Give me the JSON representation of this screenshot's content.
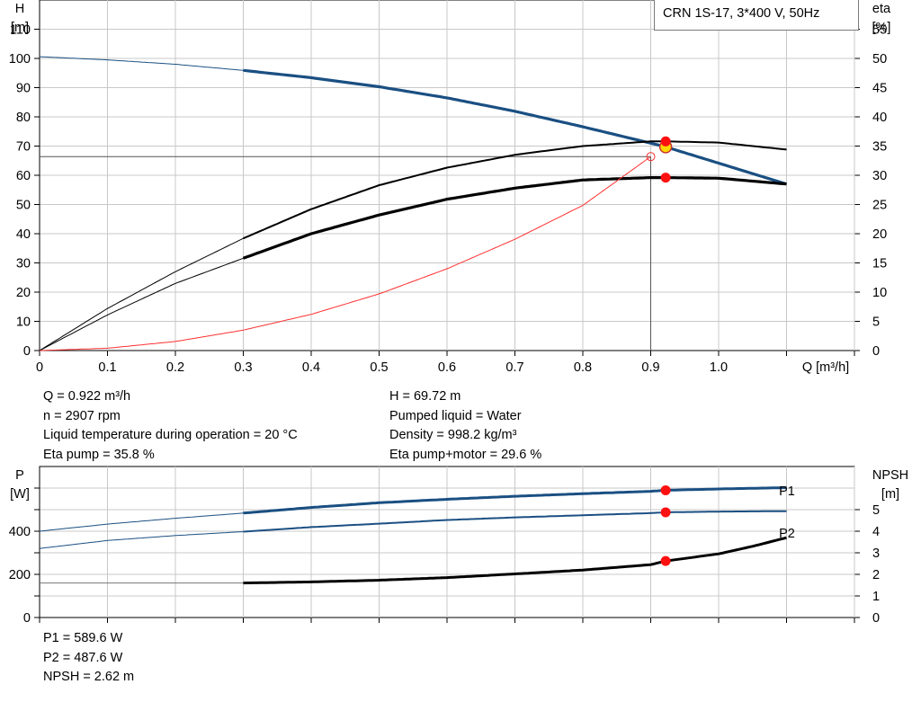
{
  "header": {
    "pump_title": "CRN 1S-17, 3*400 V, 50Hz"
  },
  "top_chart": {
    "left_axis": {
      "label": "H",
      "unit": "[m]"
    },
    "right_axis": {
      "label": "eta",
      "unit": "[%]"
    },
    "x_axis": {
      "label": "Q [m³/h]"
    }
  },
  "bottom_chart": {
    "left_axis": {
      "label": "P",
      "unit": "[W]"
    },
    "right_axis": {
      "label": "NPSH",
      "unit": "[m]"
    },
    "curve_labels": {
      "p1": "P1",
      "p2": "P2"
    }
  },
  "info": {
    "left": [
      "Q = 0.922 m³/h",
      "n = 2907 rpm",
      "Liquid temperature during operation = 20 °C",
      "Eta pump = 35.8 %"
    ],
    "right": [
      "H = 69.72 m",
      "Pumped liquid = Water",
      "Density = 998.2 kg/m³",
      "Eta pump+motor = 29.6 %"
    ]
  },
  "power_info": [
    "P1 = 589.6 W",
    "P2 = 487.6 W",
    "NPSH = 2.62 m"
  ],
  "chart_data": [
    {
      "type": "line",
      "title": "",
      "xlabel": "Q [m³/h]",
      "ylabel": "H [m]",
      "y2label": "eta [%]",
      "xlim": [
        0,
        1.2
      ],
      "ylim": [
        0,
        120
      ],
      "y2lim": [
        0,
        60
      ],
      "xticks": [
        "0",
        "0.1",
        "0.2",
        "0.3",
        "0.4",
        "0.5",
        "0.6",
        "0.7",
        "0.8",
        "0.9",
        "1.0"
      ],
      "yticks": [
        0,
        10,
        20,
        30,
        40,
        50,
        60,
        70,
        80,
        90,
        100,
        110
      ],
      "y2ticks": [
        0,
        5,
        10,
        15,
        20,
        25,
        30,
        35,
        40,
        45,
        50,
        55
      ],
      "grid": true,
      "series": [
        {
          "key": "H",
          "axis": "left",
          "color": "#1a4f82",
          "operating_from": 0.3,
          "x": [
            0,
            0.1,
            0.2,
            0.3,
            0.4,
            0.5,
            0.6,
            0.7,
            0.8,
            0.9,
            0.922,
            1.1
          ],
          "y": [
            100.6,
            99.5,
            98.0,
            95.9,
            93.4,
            90.3,
            86.5,
            81.9,
            76.6,
            71.0,
            69.72,
            57.0
          ]
        },
        {
          "key": "eta_pump",
          "axis": "right",
          "color": "#000000",
          "operating_from": 0.3,
          "x": [
            0,
            0.1,
            0.2,
            0.3,
            0.4,
            0.5,
            0.6,
            0.7,
            0.8,
            0.9,
            0.922,
            1.0,
            1.1
          ],
          "y": [
            0,
            7.2,
            13.5,
            19.2,
            24.2,
            28.3,
            31.3,
            33.5,
            35.0,
            35.8,
            35.8,
            35.6,
            34.4
          ]
        },
        {
          "key": "eta_pump_motor",
          "axis": "right",
          "color": "#000000",
          "operating_from": 0.3,
          "x": [
            0,
            0.1,
            0.2,
            0.3,
            0.4,
            0.5,
            0.6,
            0.7,
            0.8,
            0.9,
            0.922,
            1.0,
            1.1
          ],
          "y": [
            0,
            6.1,
            11.5,
            15.8,
            20.0,
            23.2,
            25.9,
            27.8,
            29.2,
            29.6,
            29.6,
            29.5,
            28.5
          ]
        },
        {
          "key": "system_curve",
          "axis": "left",
          "color": "#ff3030",
          "x": [
            0,
            0.1,
            0.2,
            0.3,
            0.4,
            0.5,
            0.6,
            0.7,
            0.8,
            0.9
          ],
          "y": [
            0,
            0.8,
            3.1,
            7.0,
            12.4,
            19.4,
            28.0,
            38.1,
            49.7,
            66.4
          ]
        }
      ],
      "operating_point": {
        "q": 0.922,
        "h": 69.72,
        "eta_pump": 35.8,
        "eta_pump_motor": 29.6
      }
    },
    {
      "type": "line",
      "title": "",
      "ylabel": "P [W]",
      "y2label": "NPSH [m]",
      "xlim": [
        0,
        1.2
      ],
      "ylim": [
        0,
        700
      ],
      "y2lim": [
        0,
        7
      ],
      "yticks": [
        0,
        200,
        400
      ],
      "y2ticks": [
        0,
        1,
        2,
        3,
        4,
        5
      ],
      "grid": true,
      "series": [
        {
          "name": "P1",
          "axis": "left",
          "color": "#1a4f82",
          "operating_from": 0.3,
          "x": [
            0,
            0.1,
            0.2,
            0.3,
            0.4,
            0.5,
            0.6,
            0.7,
            0.8,
            0.9,
            0.922,
            1.0,
            1.1
          ],
          "y": [
            400,
            433,
            460,
            484,
            510,
            532,
            548,
            562,
            574,
            585,
            589.6,
            596,
            602
          ]
        },
        {
          "name": "P2",
          "axis": "left",
          "color": "#1a4f82",
          "operating_from": 0.3,
          "x": [
            0,
            0.1,
            0.2,
            0.3,
            0.4,
            0.5,
            0.6,
            0.7,
            0.8,
            0.9,
            0.922,
            1.0,
            1.1
          ],
          "y": [
            320,
            357,
            380,
            398,
            419,
            435,
            452,
            464,
            474,
            484,
            487.6,
            491,
            493
          ]
        },
        {
          "key": "NPSH",
          "axis": "right",
          "color": "#000000",
          "operating_from": 0.3,
          "x": [
            0,
            0.1,
            0.2,
            0.3,
            0.4,
            0.5,
            0.6,
            0.7,
            0.8,
            0.9,
            0.922,
            1.0,
            1.05,
            1.1
          ],
          "y": [
            1.6,
            1.6,
            1.6,
            1.6,
            1.65,
            1.73,
            1.85,
            2.02,
            2.2,
            2.45,
            2.62,
            2.95,
            3.3,
            3.7
          ]
        }
      ],
      "operating_point": {
        "q": 0.922,
        "p1": 589.6,
        "p2": 487.6,
        "npsh": 2.62
      }
    }
  ]
}
